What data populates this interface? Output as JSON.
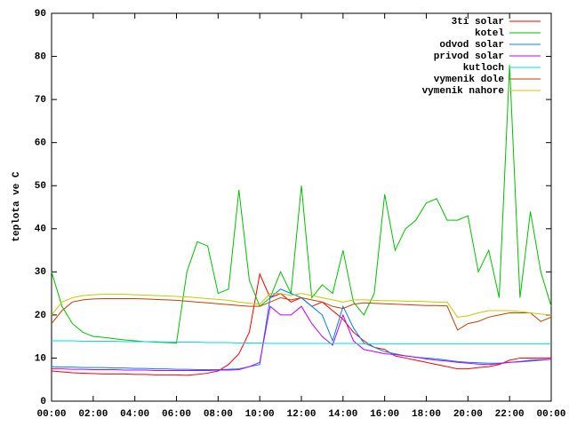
{
  "chart_data": {
    "type": "line",
    "y_label": "teplota ve C",
    "x": [
      0,
      0.5,
      1,
      1.5,
      2,
      2.5,
      3,
      3.5,
      4,
      4.5,
      5,
      5.5,
      6,
      6.5,
      7,
      7.5,
      8,
      8.5,
      9,
      9.5,
      10,
      10.5,
      11,
      11.5,
      12,
      12.5,
      13,
      13.5,
      14,
      14.5,
      15,
      15.5,
      16,
      16.5,
      17,
      17.5,
      18,
      18.5,
      19,
      19.5,
      20,
      20.5,
      21,
      21.5,
      22,
      22.5,
      23,
      23.5,
      24
    ],
    "xlim": [
      0,
      24
    ],
    "xticks": [
      {
        "value": 0,
        "label": "00:00"
      },
      {
        "value": 2,
        "label": "02:00"
      },
      {
        "value": 4,
        "label": "04:00"
      },
      {
        "value": 6,
        "label": "06:00"
      },
      {
        "value": 8,
        "label": "08:00"
      },
      {
        "value": 10,
        "label": "10:00"
      },
      {
        "value": 12,
        "label": "12:00"
      },
      {
        "value": 14,
        "label": "14:00"
      },
      {
        "value": 16,
        "label": "16:00"
      },
      {
        "value": 18,
        "label": "18:00"
      },
      {
        "value": 20,
        "label": "20:00"
      },
      {
        "value": 22,
        "label": "22:00"
      },
      {
        "value": 24,
        "label": "00:00"
      }
    ],
    "ylim": [
      0,
      90
    ],
    "yticks": [
      0,
      10,
      20,
      30,
      40,
      50,
      60,
      70,
      80,
      90
    ],
    "legend": "top-right",
    "series": [
      {
        "name": "3ti solar",
        "color": "#ff0000",
        "values": [
          7,
          6.8,
          6.6,
          6.5,
          6.4,
          6.3,
          6.3,
          6.3,
          6.2,
          6.2,
          6.1,
          6.1,
          6.1,
          6.0,
          6.2,
          6.5,
          7,
          8.5,
          11,
          16,
          29.5,
          24,
          25,
          23,
          24,
          22,
          23,
          21,
          19,
          16,
          14,
          12.5,
          12,
          10.5,
          10,
          9.5,
          9,
          8.5,
          8,
          7.5,
          7.5,
          7.8,
          8,
          8.5,
          9.5,
          10,
          10,
          10,
          10
        ]
      },
      {
        "name": "kotel",
        "color": "#00c000",
        "values": [
          30,
          22,
          18,
          16,
          15,
          14.8,
          14.5,
          14.2,
          14,
          13.8,
          13.7,
          13.6,
          13.5,
          30,
          37,
          36,
          25,
          26,
          49,
          28,
          22,
          24,
          30,
          25,
          50,
          24,
          27,
          25,
          35,
          23,
          20,
          25,
          48,
          35,
          40,
          42,
          46,
          47,
          42,
          42,
          43,
          30,
          35,
          24,
          78,
          24,
          44,
          30,
          22
        ]
      },
      {
        "name": "odvod solar",
        "color": "#0080ff",
        "values": [
          8,
          7.9,
          7.9,
          7.8,
          7.8,
          7.8,
          7.7,
          7.7,
          7.6,
          7.6,
          7.5,
          7.5,
          7.4,
          7.4,
          7.3,
          7.3,
          7.3,
          7.4,
          7.5,
          8,
          8.5,
          24,
          26,
          25,
          24,
          22,
          20,
          14,
          22,
          17,
          13.5,
          12.5,
          11.5,
          11,
          10.5,
          10.2,
          10,
          9.8,
          9.5,
          9.2,
          9,
          8.9,
          8.8,
          8.8,
          9,
          9.1,
          9.3,
          9.5,
          9.7
        ]
      },
      {
        "name": "privod solar",
        "color": "#c000ff",
        "values": [
          7.5,
          7.5,
          7.4,
          7.4,
          7.3,
          7.3,
          7.3,
          7.2,
          7.2,
          7.2,
          7.1,
          7.1,
          7.1,
          7.1,
          7.1,
          7.1,
          7.2,
          7.2,
          7.3,
          8,
          9,
          22,
          20,
          20,
          22,
          18,
          15,
          13,
          20,
          14,
          12,
          11.5,
          11,
          10.8,
          10.5,
          10.2,
          9.8,
          9.5,
          9.3,
          9,
          8.8,
          8.6,
          8.5,
          8.7,
          9,
          9.2,
          9.5,
          9.6,
          9.7
        ]
      },
      {
        "name": "kutloch",
        "color": "#00dddd",
        "values": [
          14,
          14,
          14,
          13.9,
          13.9,
          13.9,
          13.9,
          13.8,
          13.8,
          13.8,
          13.8,
          13.7,
          13.7,
          13.7,
          13.7,
          13.6,
          13.6,
          13.6,
          13.5,
          13.5,
          13.5,
          13.4,
          13.4,
          13.4,
          13.4,
          13.4,
          13.4,
          13.4,
          13.4,
          13.4,
          13.3,
          13.3,
          13.3,
          13.3,
          13.3,
          13.3,
          13.3,
          13.3,
          13.3,
          13.3,
          13.3,
          13.3,
          13.3,
          13.3,
          13.3,
          13.3,
          13.3,
          13.3,
          13.3
        ]
      },
      {
        "name": "vymenik dole",
        "color": "#c04000",
        "values": [
          18,
          21,
          23,
          23.5,
          23.7,
          23.8,
          23.8,
          23.8,
          23.8,
          23.7,
          23.6,
          23.5,
          23.4,
          23.2,
          23,
          22.8,
          22.6,
          22.4,
          22.2,
          22,
          22,
          23,
          24,
          23.5,
          24,
          23.5,
          23,
          22,
          21.5,
          22.5,
          22.8,
          22.7,
          22.6,
          22.5,
          22.4,
          22.3,
          22.2,
          22.2,
          22.1,
          16.5,
          18,
          18.5,
          19.5,
          20,
          20.5,
          20.5,
          20.5,
          18.5,
          19.5
        ]
      },
      {
        "name": "vymenik nahore",
        "color": "#c8c800",
        "values": [
          20,
          23,
          24,
          24.5,
          24.7,
          24.8,
          24.8,
          24.8,
          24.7,
          24.6,
          24.5,
          24.4,
          24.3,
          24.2,
          24,
          23.8,
          23.6,
          23.4,
          23,
          22.7,
          22.5,
          25,
          25,
          24.5,
          25,
          24.5,
          24,
          23.5,
          23,
          23.5,
          23.5,
          23.4,
          23.3,
          23.3,
          23.2,
          23.2,
          23.1,
          23,
          23,
          19.5,
          19.8,
          20.5,
          21,
          21,
          21,
          20.8,
          20.5,
          20.2,
          20
        ]
      }
    ]
  }
}
